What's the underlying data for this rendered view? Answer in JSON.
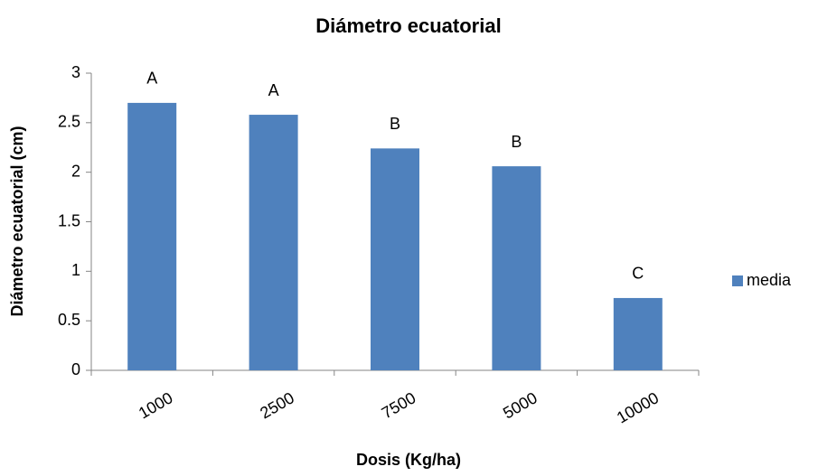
{
  "chart_data": {
    "type": "bar",
    "title": "Diámetro ecuatorial",
    "x_label": "Dosis (Kg/ha)",
    "y_label": "Diámetro ecuatorial (cm)",
    "categories": [
      "1000",
      "2500",
      "7500",
      "5000",
      "10000"
    ],
    "series": [
      {
        "name": "media",
        "color": "#4f81bd",
        "values": [
          2.7,
          2.58,
          2.24,
          2.06,
          0.73
        ]
      }
    ],
    "annotations": [
      "A",
      "A",
      "B",
      "B",
      "C"
    ],
    "ylim": [
      0,
      3
    ],
    "yticks": [
      0,
      0.5,
      1,
      1.5,
      2,
      2.5,
      3
    ],
    "grid": false,
    "legend": "right"
  }
}
